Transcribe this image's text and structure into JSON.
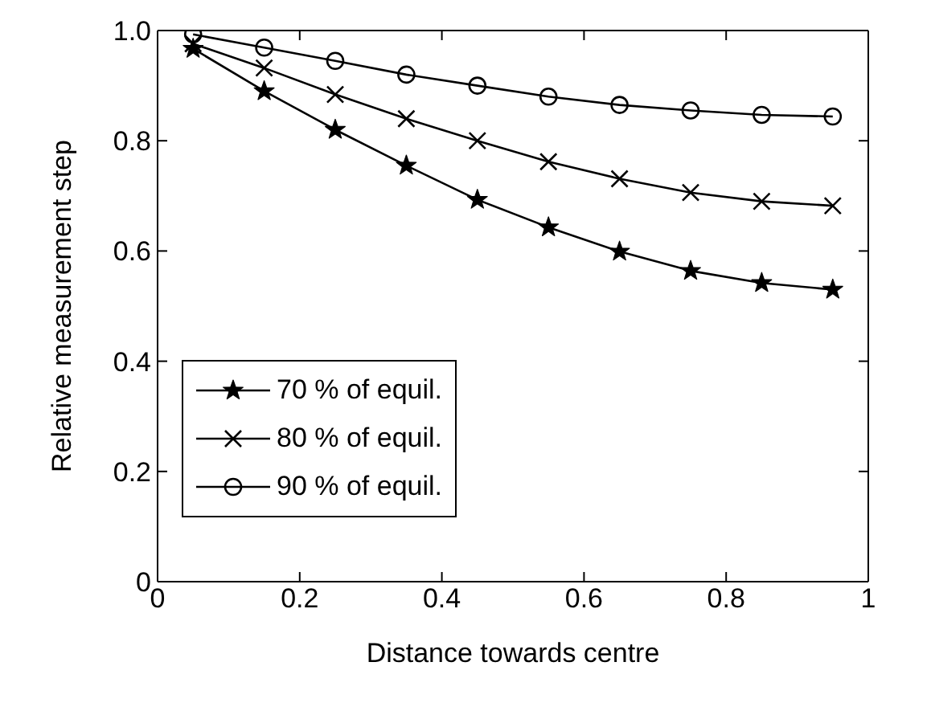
{
  "chart_data": {
    "type": "line",
    "xlabel": "Distance towards centre",
    "ylabel": "Relative measurement step",
    "x": [
      0.05,
      0.15,
      0.25,
      0.35,
      0.45,
      0.55,
      0.65,
      0.75,
      0.85,
      0.95
    ],
    "series": [
      {
        "name": "70 % of equil.",
        "color": "#000000",
        "marker": "star",
        "values": [
          0.967,
          0.89,
          0.82,
          0.755,
          0.693,
          0.643,
          0.599,
          0.564,
          0.542,
          0.53
        ]
      },
      {
        "name": "80 % of equil.",
        "color": "#000000",
        "marker": "cross",
        "values": [
          0.976,
          0.932,
          0.884,
          0.84,
          0.8,
          0.762,
          0.731,
          0.706,
          0.69,
          0.682
        ]
      },
      {
        "name": "90 % of equil.",
        "color": "#000000",
        "marker": "circle",
        "values": [
          0.993,
          0.969,
          0.945,
          0.92,
          0.9,
          0.88,
          0.865,
          0.855,
          0.847,
          0.844
        ]
      }
    ],
    "xlim": [
      0,
      1
    ],
    "xticks": [
      0,
      0.2,
      0.4,
      0.6,
      0.8,
      1
    ],
    "ylim": [
      0,
      1
    ],
    "yticks": [
      0,
      {
        "value": 0.2,
        "label": "0.2"
      },
      {
        "value": 0.4,
        "label": "0.4"
      },
      {
        "value": 0.6,
        "label": "0.6"
      },
      {
        "value": 0.8,
        "label": "0.8"
      },
      {
        "value": 1,
        "label": "1.0"
      }
    ],
    "grid": false,
    "legend": "bottom left",
    "line_style": "solid"
  }
}
